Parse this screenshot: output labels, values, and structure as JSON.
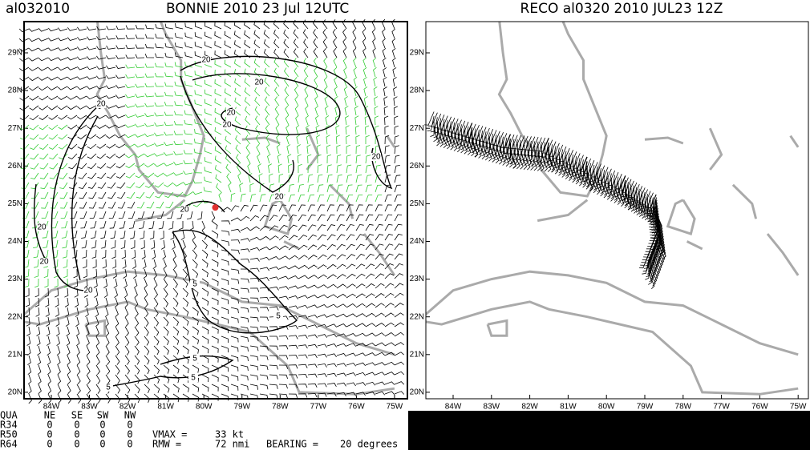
{
  "left_panel": {
    "storm_id": "al032010",
    "title": "BONNIE 2010 23 Jul 12UTC",
    "lat_labels": [
      "29N",
      "28N",
      "27N",
      "26N",
      "25N",
      "24N",
      "23N",
      "22N",
      "21N",
      "20N"
    ],
    "lon_labels": [
      "84W",
      "83W",
      "82W",
      "81W",
      "80W",
      "79W",
      "78W",
      "77W",
      "76W",
      "75W"
    ],
    "contour_labels": [
      20,
      20,
      20,
      20,
      20,
      20,
      20,
      20,
      20,
      20,
      20,
      5,
      5,
      5,
      5,
      5
    ]
  },
  "right_panel": {
    "title": "RECO al0320 2010 JUL23 12Z",
    "lat_labels": [
      "29N",
      "28N",
      "27N",
      "26N",
      "25N",
      "24N",
      "23N",
      "22N",
      "21N",
      "20N"
    ],
    "lon_labels": [
      "84W",
      "83W",
      "82W",
      "81W",
      "80W",
      "79W",
      "78W",
      "77W",
      "76W",
      "75W"
    ]
  },
  "table": {
    "header": [
      "QUA",
      "NE",
      "SE",
      "SW",
      "NW"
    ],
    "rows": [
      [
        "R34",
        0,
        0,
        0,
        0
      ],
      [
        "R50",
        0,
        0,
        0,
        0
      ],
      [
        "R64",
        0,
        0,
        0,
        0
      ]
    ],
    "vmax_label": "VMAX =",
    "vmax_value": "33 kt",
    "rmw_label": "RMW =",
    "rmw_value": "72 nmi",
    "bearing_label": "BEARING =",
    "bearing_value": "20 degrees"
  }
}
